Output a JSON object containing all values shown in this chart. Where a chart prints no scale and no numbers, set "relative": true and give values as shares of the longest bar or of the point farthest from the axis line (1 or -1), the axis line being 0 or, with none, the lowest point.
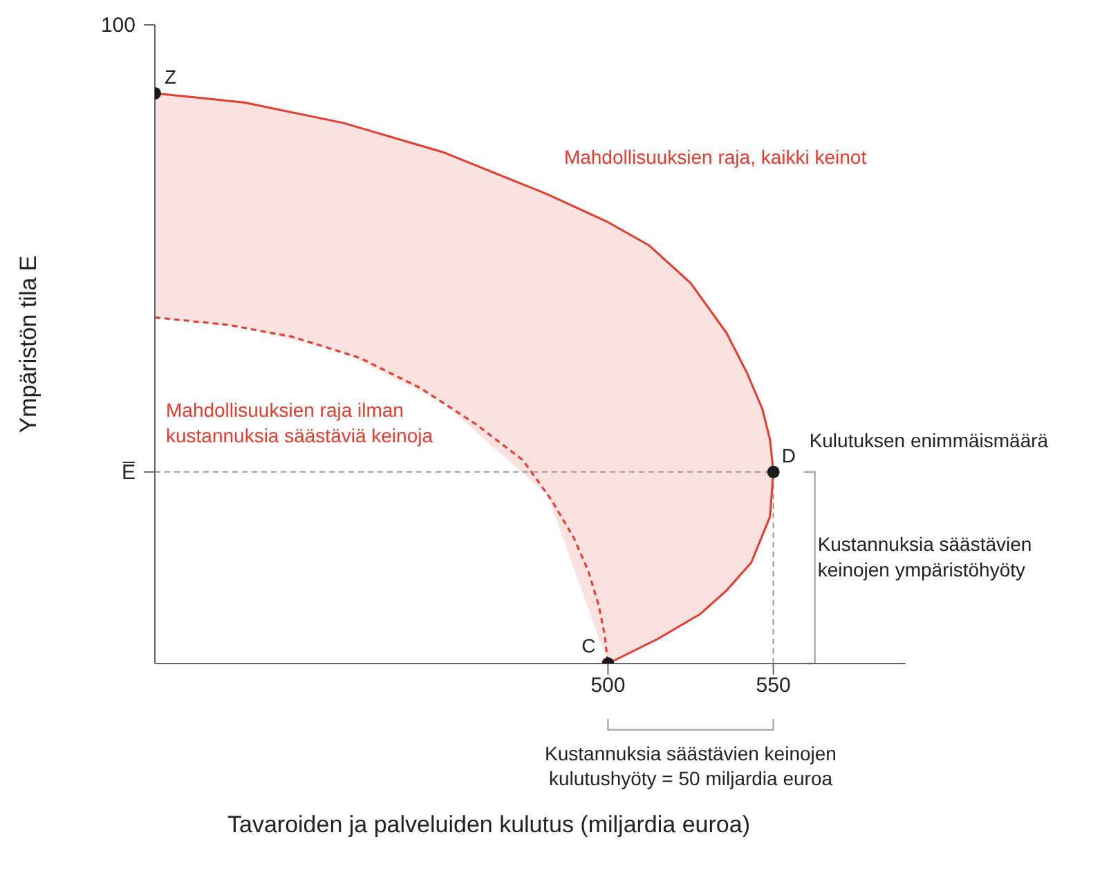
{
  "chart_data": {
    "type": "line",
    "xlabel": "Tavaroiden ja palveluiden kulutus (miljardia euroa)",
    "ylabel": "Ympäristön tila E",
    "xlim": [
      363,
      590
    ],
    "xticks": [
      500,
      550
    ],
    "relative": true,
    "grid": false,
    "series": [
      {
        "name": "Mahdollisuuksien raja, kaikki keinot",
        "color": "#e33b2e",
        "line_style": "solid",
        "marker": "none",
        "x": [
          363,
          390,
          420,
          450,
          481.7,
          500,
          512.5,
          525,
          535.8,
          542,
          546.7,
          549,
          550,
          549,
          543.3,
          536,
          527.9,
          515,
          500
        ],
        "values": [
          1,
          0.984,
          0.948,
          0.897,
          0.823,
          0.774,
          0.733,
          0.667,
          0.58,
          0.51,
          0.446,
          0.392,
          0.336,
          0.258,
          0.177,
          0.129,
          0.087,
          0.043,
          0
        ],
        "upper": [
          1,
          0.984,
          0.948,
          0.897,
          0.823,
          0.774,
          0.733,
          0.667,
          0.58,
          0.51,
          0.446,
          0.392,
          0.336,
          0.258,
          0.177,
          0.129,
          0.087,
          0.043,
          0
        ],
        "lower": [
          0.607,
          0.589,
          0.545,
          0.458,
          0.296,
          0,
          0.036,
          0.077,
          0.128,
          0.168,
          0.225,
          0.258,
          0.336,
          0.258,
          0.177,
          0.129,
          0.087,
          0.043,
          0
        ]
      },
      {
        "name": "Mahdollisuuksien raja ilman\nkustannuksia säästäviä keinoja",
        "color": "#e33b2e",
        "line_style": "dashed",
        "marker": "none",
        "x": [
          363,
          385,
          404.6,
          425,
          443.3,
          460,
          474.2,
          483,
          489.6,
          494,
          497.1,
          499,
          500
        ],
        "values": [
          0.607,
          0.594,
          0.573,
          0.536,
          0.483,
          0.42,
          0.357,
          0.286,
          0.221,
          0.163,
          0.104,
          0.05,
          0
        ]
      },
      {
        "type": "scatter",
        "color": "#1a1a1a",
        "marker": "circle",
        "x": [
          363,
          550,
          500
        ],
        "values": [
          1,
          0.336,
          0
        ]
      }
    ],
    "ref_lines": [
      {
        "axis": "y",
        "value": 0.336,
        "color": "#999999",
        "line_style": "dashed"
      },
      {
        "axis": "x",
        "value": 550,
        "color": "#999999",
        "line_style": "dashed"
      }
    ],
    "annotations": [
      {
        "text": "Z",
        "x": 363,
        "y": 1
      },
      {
        "text": "D",
        "x": 550,
        "y": 0.336
      },
      {
        "text": "C",
        "x": 500,
        "y": 0
      },
      {
        "text": "Kulutuksen enimmäismäärä",
        "x": 550,
        "y": 0.336
      },
      "Kustannuksia säästävien\nkeinojen ympäristöhyöty",
      "Kustannuksia säästävien keinojen\nkulutushyöty = 50 miljardia euroa",
      "100",
      "E̅"
    ]
  }
}
